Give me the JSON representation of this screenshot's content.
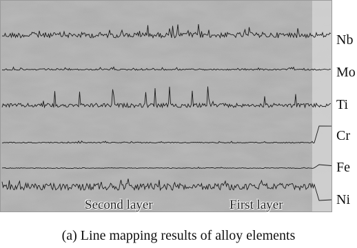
{
  "figure": {
    "caption": "(a) Line mapping results of alloy elements",
    "elements": [
      "Nb",
      "Mo",
      "Ti",
      "Cr",
      "Fe",
      "Ni"
    ],
    "layers": [
      "Second layer",
      "First layer"
    ],
    "colors": {
      "background_gray": "#a9a9a9",
      "interface_strip": "#d4d4d4",
      "trace": "#1a1a1a"
    }
  }
}
